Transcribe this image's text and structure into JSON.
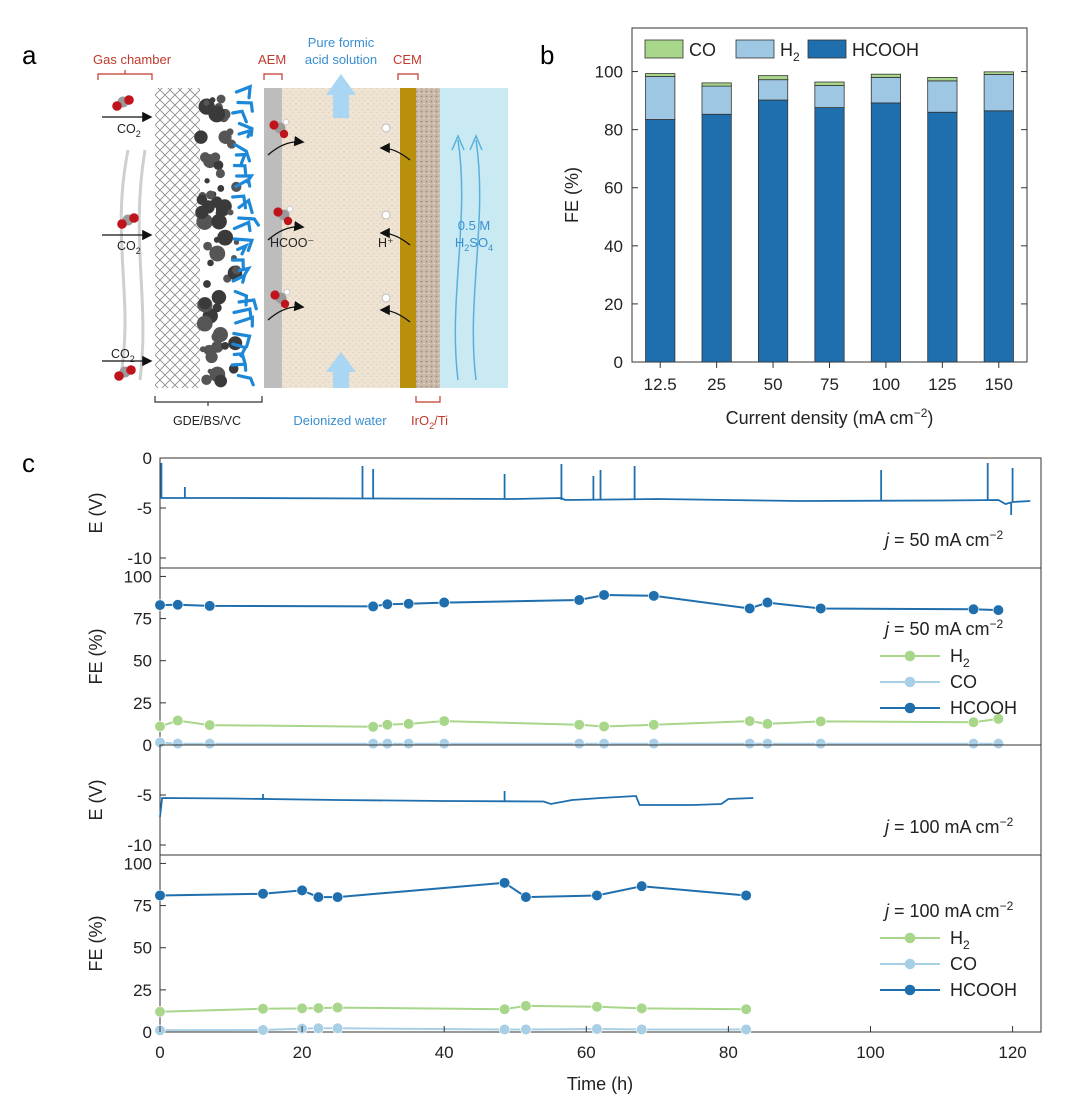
{
  "panel_labels": {
    "a": "a",
    "b": "b",
    "c": "c"
  },
  "colors": {
    "hcooh": "#1f6fae",
    "h2": "#9dc7e3",
    "co": "#a8d68a",
    "h2_line": "#a8d68a",
    "co_line": "#a9cfe6",
    "voltage": "#1f6fae",
    "gas_label": "#c0392b",
    "water_label": "#3a8fd0"
  },
  "schematic": {
    "gas_chamber": "Gas chamber",
    "aem": "AEM",
    "pure_formic_1": "Pure formic",
    "pure_formic_2": "acid solution",
    "cem": "CEM",
    "co2": "CO",
    "co2_sub": "2",
    "hcoo": "HCOO⁻",
    "hplus": "H⁺",
    "acid_1": "0.5 M",
    "acid_2": "H",
    "acid_2_sub1": "2",
    "acid_2_mid": "SO",
    "acid_2_sub2": "4",
    "gde": "GDE/BS/VC",
    "di_water": "Deionized water",
    "anode": "IrO",
    "anode_sub": "2",
    "anode_tail": "/Ti"
  },
  "chart_data": [
    {
      "type": "bar",
      "panel": "b",
      "stacked": true,
      "categories": [
        "12.5",
        "25",
        "50",
        "75",
        "100",
        "125",
        "150"
      ],
      "series": [
        {
          "name": "HCOOH",
          "values": [
            83.5,
            85.3,
            90.2,
            87.6,
            89.2,
            86.0,
            86.5
          ]
        },
        {
          "name": "H2",
          "values": [
            14.8,
            9.7,
            7.0,
            7.6,
            8.8,
            10.8,
            12.5
          ]
        },
        {
          "name": "CO",
          "values": [
            1.0,
            1.1,
            1.4,
            1.2,
            1.1,
            1.2,
            0.9
          ]
        }
      ],
      "legend": [
        {
          "key": "co",
          "label": "CO"
        },
        {
          "key": "h2",
          "label": "H",
          "sub": "2"
        },
        {
          "key": "hcooh",
          "label": "HCOOH"
        }
      ],
      "legend_position": "top",
      "xlabel": "Current density (mA cm",
      "xlabel_sup": "−2",
      "xlabel_tail": ")",
      "ylabel": "FE (%)",
      "ylim": [
        0,
        115
      ],
      "yticks": [
        "0",
        "20",
        "40",
        "60",
        "80",
        "100"
      ]
    },
    {
      "type": "line",
      "panel": "c1",
      "ylabel": "E (V)",
      "ylim": [
        -11,
        0
      ],
      "yticks": [
        "0",
        "-5",
        "-10"
      ],
      "annotation_j": "j",
      "annotation_rest": " = 50 mA cm",
      "annotation_sup": "−2",
      "series": [
        {
          "name": "E",
          "baseline": [
            [
              0,
              -4.0
            ],
            [
              10,
              -4.0
            ],
            [
              30,
              -4.05
            ],
            [
              50,
              -4.1
            ],
            [
              56.5,
              -4.0
            ],
            [
              57,
              -4.2
            ],
            [
              70,
              -4.1
            ],
            [
              90,
              -4.3
            ],
            [
              110,
              -4.25
            ],
            [
              118,
              -4.2
            ],
            [
              119,
              -4.6
            ],
            [
              120,
              -4.4
            ],
            [
              122.5,
              -4.3
            ]
          ],
          "spikes": [
            [
              0.2,
              -0.5
            ],
            [
              3.5,
              -2.9
            ],
            [
              28.5,
              -0.8
            ],
            [
              30,
              -1.1
            ],
            [
              48.5,
              -1.6
            ],
            [
              56.5,
              -0.6
            ],
            [
              61,
              -1.8
            ],
            [
              62,
              -1.2
            ],
            [
              66.8,
              -0.8
            ],
            [
              101.5,
              -1.2
            ],
            [
              116.5,
              -0.5
            ],
            [
              120,
              -1.0
            ],
            [
              119.8,
              -5.7
            ]
          ]
        }
      ]
    },
    {
      "type": "line",
      "panel": "c2",
      "ylabel": "FE (%)",
      "ylim": [
        0,
        105
      ],
      "yticks": [
        "0",
        "25",
        "50",
        "75",
        "100"
      ],
      "annotation_j": "j",
      "annotation_rest": " = 50 mA cm",
      "annotation_sup": "−2",
      "series": [
        {
          "name": "H2",
          "x": [
            0,
            2.5,
            7,
            30,
            32,
            35,
            40,
            59,
            62.5,
            69.5,
            83,
            85.5,
            93,
            114.5,
            118
          ],
          "y": [
            11,
            14.5,
            11.8,
            10.8,
            12,
            12.5,
            14.2,
            12,
            11,
            12,
            14.2,
            12.5,
            14,
            13.5,
            15.5
          ]
        },
        {
          "name": "CO",
          "x": [
            0,
            2.5,
            7,
            30,
            32,
            35,
            40,
            59,
            62.5,
            69.5,
            83,
            85.5,
            93,
            114.5,
            118
          ],
          "y": [
            1.5,
            0.8,
            0.8,
            0.8,
            0.8,
            0.8,
            0.8,
            0.8,
            0.8,
            0.8,
            0.8,
            0.8,
            0.8,
            0.8,
            0.8
          ]
        },
        {
          "name": "HCOOH",
          "x": [
            0,
            2.5,
            7,
            30,
            32,
            35,
            40,
            59,
            62.5,
            69.5,
            83,
            85.5,
            93,
            114.5,
            118
          ],
          "y": [
            83,
            83.2,
            82.5,
            82.2,
            83.5,
            83.8,
            84.5,
            86,
            89,
            88.5,
            81,
            84.5,
            81,
            80.5,
            80
          ]
        }
      ],
      "legend": [
        {
          "key": "h2_line",
          "label": "H",
          "sub": "2"
        },
        {
          "key": "co_line",
          "label": "CO"
        },
        {
          "key": "hcooh",
          "label": "HCOOH"
        }
      ]
    },
    {
      "type": "line",
      "panel": "c3",
      "ylabel": "E (V)",
      "ylim": [
        -11,
        0
      ],
      "yticks": [
        "-5",
        "-10"
      ],
      "annotation_j": "j",
      "annotation_rest": " = 100 mA cm",
      "annotation_sup": "−2",
      "series": [
        {
          "name": "E",
          "baseline": [
            [
              0,
              -7.2
            ],
            [
              0.3,
              -5.3
            ],
            [
              10,
              -5.35
            ],
            [
              25,
              -5.5
            ],
            [
              40,
              -5.6
            ],
            [
              54,
              -5.65
            ],
            [
              55,
              -5.9
            ],
            [
              58,
              -5.5
            ],
            [
              62,
              -5.3
            ],
            [
              67,
              -5.1
            ],
            [
              67.5,
              -6.0
            ],
            [
              75,
              -6.0
            ],
            [
              79,
              -5.9
            ],
            [
              80,
              -5.4
            ],
            [
              83.5,
              -5.3
            ]
          ],
          "spikes": [
            [
              14.5,
              -4.9
            ],
            [
              48.5,
              -4.6
            ]
          ]
        }
      ]
    },
    {
      "type": "line",
      "panel": "c4",
      "ylabel": "FE (%)",
      "ylim": [
        0,
        105
      ],
      "yticks": [
        "0",
        "25",
        "50",
        "75",
        "100"
      ],
      "xlabel": "Time (h)",
      "xlim": [
        0,
        124
      ],
      "xticks": [
        "0",
        "20",
        "40",
        "60",
        "80",
        "100",
        "120"
      ],
      "annotation_j": "j",
      "annotation_rest": " = 100 mA cm",
      "annotation_sup": "−2",
      "series": [
        {
          "name": "H2",
          "x": [
            0,
            14.5,
            20,
            22.3,
            25,
            48.5,
            51.5,
            61.5,
            67.8,
            82.5
          ],
          "y": [
            12,
            13.8,
            14,
            14.2,
            14.5,
            13.5,
            15.5,
            15,
            14,
            13.5
          ]
        },
        {
          "name": "CO",
          "x": [
            0,
            14.5,
            20,
            22.3,
            25,
            48.5,
            51.5,
            61.5,
            67.8,
            82.5
          ],
          "y": [
            1,
            1.2,
            2,
            2.2,
            2.2,
            1.5,
            1.5,
            1.8,
            1.5,
            1.5
          ]
        },
        {
          "name": "HCOOH",
          "x": [
            0,
            14.5,
            20,
            22.3,
            25,
            48.5,
            51.5,
            61.5,
            67.8,
            82.5
          ],
          "y": [
            81,
            82,
            84,
            80,
            80,
            88.5,
            80,
            81,
            86.5,
            81
          ]
        }
      ],
      "legend": [
        {
          "key": "h2_line",
          "label": "H",
          "sub": "2"
        },
        {
          "key": "co_line",
          "label": "CO"
        },
        {
          "key": "hcooh",
          "label": "HCOOH"
        }
      ]
    }
  ]
}
